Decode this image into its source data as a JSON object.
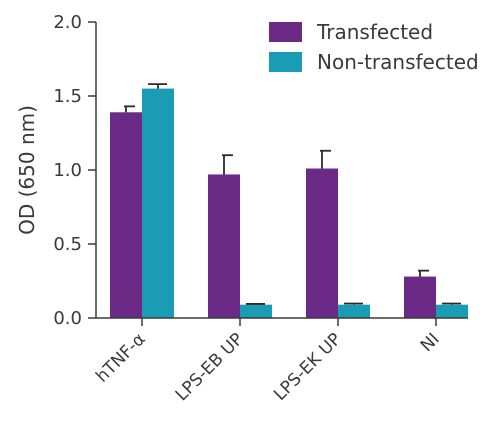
{
  "chart_data": {
    "type": "bar",
    "title": "",
    "xlabel": "",
    "ylabel": "OD (650 nm)",
    "ylim": [
      0,
      2.0
    ],
    "yticks": [
      "0.0",
      "0.5",
      "1.0",
      "1.5",
      "2.0"
    ],
    "yticks_values": [
      0,
      0.5,
      1.0,
      1.5,
      2.0
    ],
    "categories": [
      "hTNF-α",
      "LPS-EB UP",
      "LPS-EK UP",
      "NI"
    ],
    "series": [
      {
        "name": "Transfected",
        "color": "#6a2a86",
        "values": [
          1.39,
          0.97,
          1.01,
          0.28
        ],
        "errors": [
          0.04,
          0.13,
          0.12,
          0.04
        ]
      },
      {
        "name": "Non-transfected",
        "color": "#1a9cb4",
        "values": [
          1.55,
          0.09,
          0.09,
          0.09
        ],
        "errors": [
          0.03,
          0.005,
          0.008,
          0.008
        ]
      }
    ],
    "grid": false,
    "legend": "top-right"
  }
}
